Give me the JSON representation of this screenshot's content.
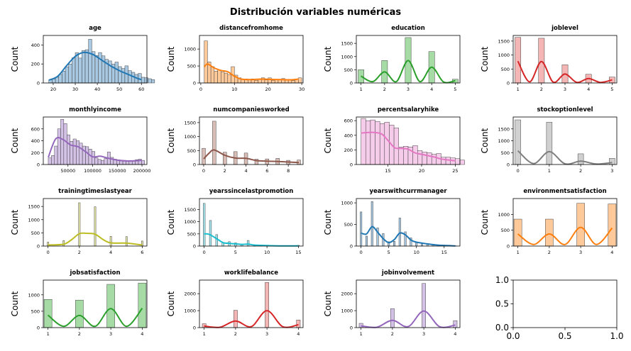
{
  "figure": {
    "title": "Distribución variables numéricas"
  },
  "chart_data": [
    {
      "type": "bar",
      "title": "age",
      "ylabel": "Count",
      "xlim": [
        15.5,
        62.5
      ],
      "ylim": [
        0,
        500
      ],
      "xticks": [
        20,
        30,
        40,
        50,
        60
      ],
      "yticks": [
        0,
        200,
        400
      ],
      "color": "#1f77b4",
      "fill": "#a9c9e2",
      "bins": {
        "start": 18,
        "width": 1.5,
        "counts": [
          33,
          42,
          60,
          90,
          125,
          168,
          200,
          265,
          318,
          262,
          342,
          350,
          460,
          330,
          288,
          320,
          285,
          248,
          232,
          198,
          220,
          172,
          152,
          180,
          130,
          112,
          90,
          100,
          60,
          55,
          45,
          35
        ]
      },
      "kde": [
        [
          18,
          30
        ],
        [
          22,
          70
        ],
        [
          26,
          180
        ],
        [
          30,
          280
        ],
        [
          34,
          322
        ],
        [
          38,
          300
        ],
        [
          42,
          240
        ],
        [
          46,
          180
        ],
        [
          50,
          130
        ],
        [
          54,
          90
        ],
        [
          58,
          50
        ],
        [
          60,
          35
        ]
      ]
    },
    {
      "type": "bar",
      "title": "distancefromhome",
      "ylabel": "Count",
      "xlim": [
        -0.4,
        30.4
      ],
      "ylim": [
        0,
        1400
      ],
      "xticks": [
        0,
        10,
        20,
        30
      ],
      "yticks": [
        0,
        500,
        1000
      ],
      "color": "#ff7f0e",
      "fill": "#ffc99a",
      "bins": {
        "start": 1,
        "width": 1,
        "counts": [
          1240,
          620,
          480,
          350,
          380,
          320,
          290,
          250,
          480,
          230,
          150,
          100,
          120,
          100,
          120,
          80,
          100,
          150,
          90,
          150,
          80,
          100,
          110,
          130,
          80,
          80,
          70,
          120,
          150
        ]
      },
      "kde": [
        [
          1,
          470
        ],
        [
          2,
          560
        ],
        [
          4,
          440
        ],
        [
          6,
          370
        ],
        [
          8,
          330
        ],
        [
          10,
          200
        ],
        [
          12,
          115
        ],
        [
          15,
          100
        ],
        [
          18,
          115
        ],
        [
          21,
          105
        ],
        [
          24,
          100
        ],
        [
          27,
          95
        ],
        [
          29,
          115
        ]
      ]
    },
    {
      "type": "bar",
      "title": "education",
      "ylabel": "Count",
      "xlim": [
        0.8,
        5.2
      ],
      "ylim": [
        0,
        1800
      ],
      "xticks": [
        1,
        2,
        3,
        4,
        5
      ],
      "yticks": [
        0,
        500,
        1000,
        1500
      ],
      "color": "#2ca02c",
      "fill": "#a6dba6",
      "bars": {
        "x": [
          1,
          2,
          3,
          4,
          5
        ],
        "width": 0.25,
        "counts": [
          500,
          850,
          1720,
          1190,
          140
        ]
      },
      "kde": [
        [
          1,
          260
        ],
        [
          1.5,
          50
        ],
        [
          2,
          420
        ],
        [
          2.5,
          50
        ],
        [
          3,
          850
        ],
        [
          3.5,
          50
        ],
        [
          4,
          600
        ],
        [
          4.5,
          40
        ],
        [
          5,
          90
        ]
      ]
    },
    {
      "type": "bar",
      "title": "joblevel",
      "ylabel": "Count",
      "xlim": [
        0.8,
        5.2
      ],
      "ylim": [
        0,
        1700
      ],
      "xticks": [
        1,
        2,
        3,
        4,
        5
      ],
      "yticks": [
        0,
        500,
        1000,
        1500
      ],
      "color": "#d62728",
      "fill": "#f4b5b5",
      "bars": {
        "x": [
          1,
          2,
          3,
          4,
          5
        ],
        "width": 0.25,
        "counts": [
          1630,
          1600,
          650,
          310,
          210
        ]
      },
      "kde": [
        [
          1,
          780
        ],
        [
          1.5,
          40
        ],
        [
          2,
          770
        ],
        [
          2.5,
          30
        ],
        [
          3,
          320
        ],
        [
          3.5,
          20
        ],
        [
          4,
          160
        ],
        [
          4.5,
          20
        ],
        [
          5,
          110
        ]
      ]
    },
    {
      "type": "bar",
      "title": "monthlyincome",
      "ylabel": "Count",
      "xlim": [
        0,
        210000
      ],
      "ylim": [
        0,
        800
      ],
      "xticks": [
        50000,
        100000,
        150000,
        200000
      ],
      "yticks": [
        0,
        200,
        400,
        600
      ],
      "color": "#9467bd",
      "fill": "#d4c2e6",
      "bins": {
        "start": 10000,
        "width": 6300,
        "counts": [
          110,
          150,
          310,
          600,
          760,
          690,
          500,
          390,
          430,
          400,
          360,
          310,
          300,
          260,
          220,
          110,
          85,
          70,
          100,
          210,
          120,
          90,
          80,
          60,
          70,
          60,
          50,
          55,
          80,
          90,
          70
        ]
      },
      "kde": [
        [
          10000,
          120
        ],
        [
          25000,
          430
        ],
        [
          40000,
          420
        ],
        [
          55000,
          330
        ],
        [
          70000,
          300
        ],
        [
          85000,
          220
        ],
        [
          100000,
          130
        ],
        [
          115000,
          140
        ],
        [
          130000,
          110
        ],
        [
          150000,
          75
        ],
        [
          170000,
          60
        ],
        [
          190000,
          65
        ],
        [
          200000,
          70
        ]
      ]
    },
    {
      "type": "bar",
      "title": "numcompaniesworked",
      "ylabel": "Count",
      "xlim": [
        -0.4,
        9.4
      ],
      "ylim": [
        0,
        1700
      ],
      "xticks": [
        0,
        2,
        4,
        6,
        8
      ],
      "yticks": [
        0,
        500,
        1000,
        1500
      ],
      "color": "#8c564b",
      "fill": "#d8bdb7",
      "bars": {
        "x": [
          0,
          1,
          2,
          3,
          4,
          5,
          6,
          7,
          8,
          9
        ],
        "width": 0.33,
        "counts": [
          580,
          1550,
          440,
          460,
          410,
          190,
          200,
          220,
          150,
          160
        ]
      },
      "kde": [
        [
          0,
          200
        ],
        [
          0.5,
          400
        ],
        [
          1,
          520
        ],
        [
          2,
          330
        ],
        [
          3,
          230
        ],
        [
          4,
          220
        ],
        [
          5,
          140
        ],
        [
          6,
          120
        ],
        [
          7,
          110
        ],
        [
          8,
          90
        ],
        [
          9,
          70
        ]
      ]
    },
    {
      "type": "bar",
      "title": "percentsalaryhike",
      "ylabel": "Count",
      "xlim": [
        10.3,
        25.7
      ],
      "ylim": [
        0,
        650
      ],
      "xticks": [
        15,
        20,
        25
      ],
      "yticks": [
        0,
        200,
        400,
        600
      ],
      "color": "#e377c2",
      "fill": "#f6cceb",
      "bins": {
        "start": 11,
        "width": 0.7,
        "counts": [
          630,
          600,
          610,
          590,
          560,
          580,
          540,
          500,
          240,
          250,
          240,
          260,
          190,
          170,
          160,
          140,
          150,
          100,
          100,
          90,
          80,
          60
        ]
      },
      "kde": [
        [
          11,
          430
        ],
        [
          12.5,
          440
        ],
        [
          14,
          420
        ],
        [
          15,
          330
        ],
        [
          16,
          230
        ],
        [
          17,
          220
        ],
        [
          18,
          210
        ],
        [
          19,
          160
        ],
        [
          20,
          140
        ],
        [
          21,
          120
        ],
        [
          22,
          100
        ],
        [
          23,
          75
        ],
        [
          25,
          50
        ]
      ]
    },
    {
      "type": "bar",
      "title": "stockoptionlevel",
      "ylabel": "Count",
      "xlim": [
        -0.15,
        3.15
      ],
      "ylim": [
        0,
        2000
      ],
      "xticks": [
        0,
        1,
        2,
        3
      ],
      "yticks": [
        0,
        500,
        1000,
        1500
      ],
      "color": "#7f7f7f",
      "fill": "#d0d0d0",
      "bars": {
        "x": [
          0,
          1,
          2,
          3
        ],
        "width": 0.18,
        "counts": [
          1880,
          1780,
          450,
          260
        ]
      },
      "kde": [
        [
          0,
          580
        ],
        [
          0.5,
          40
        ],
        [
          1,
          540
        ],
        [
          1.5,
          30
        ],
        [
          2,
          140
        ],
        [
          2.5,
          20
        ],
        [
          3,
          80
        ]
      ]
    },
    {
      "type": "bar",
      "title": "trainingtimeslastyear",
      "ylabel": "Count",
      "xlim": [
        -0.3,
        6.3
      ],
      "ylim": [
        0,
        1800
      ],
      "xticks": [
        0,
        2,
        4,
        6
      ],
      "yticks": [
        0,
        500,
        1000,
        1500
      ],
      "color": "#bcbd22",
      "fill": "#e6e6a8",
      "bars": {
        "x": [
          0,
          1,
          2,
          3,
          4,
          5,
          6
        ],
        "width": 0.1,
        "counts": [
          150,
          210,
          1640,
          1490,
          370,
          360,
          190
        ]
      },
      "kde": [
        [
          0,
          40
        ],
        [
          1,
          70
        ],
        [
          1.5,
          240
        ],
        [
          2,
          470
        ],
        [
          2.5,
          480
        ],
        [
          3,
          450
        ],
        [
          3.5,
          250
        ],
        [
          4,
          120
        ],
        [
          5,
          110
        ],
        [
          6,
          40
        ]
      ]
    },
    {
      "type": "bar",
      "title": "yearssincelastpromotion",
      "ylabel": "Count",
      "xlim": [
        -0.75,
        15.75
      ],
      "ylim": [
        0,
        1950
      ],
      "xticks": [
        0,
        5,
        10,
        15
      ],
      "yticks": [
        0,
        500,
        1000,
        1500
      ],
      "color": "#17becf",
      "fill": "#a8e6ee",
      "bars": {
        "x": [
          0,
          1,
          2,
          3,
          4,
          5,
          6,
          7,
          8,
          9,
          10,
          11,
          12,
          13,
          14,
          15
        ],
        "width": 0.32,
        "counts": [
          1750,
          1050,
          470,
          150,
          180,
          130,
          80,
          230,
          20,
          40,
          20,
          25,
          10,
          20,
          10,
          30
        ]
      },
      "kde": [
        [
          0,
          500
        ],
        [
          0.8,
          480
        ],
        [
          2,
          300
        ],
        [
          3,
          140
        ],
        [
          4,
          110
        ],
        [
          5,
          90
        ],
        [
          6,
          70
        ],
        [
          7,
          80
        ],
        [
          8,
          40
        ],
        [
          10,
          20
        ],
        [
          12,
          10
        ],
        [
          15,
          10
        ]
      ]
    },
    {
      "type": "bar",
      "title": "yearswithcurrmanager",
      "ylabel": "Count",
      "xlim": [
        -0.85,
        17.85
      ],
      "ylim": [
        0,
        1100
      ],
      "xticks": [
        0,
        5,
        10,
        15
      ],
      "yticks": [
        0,
        500,
        1000
      ],
      "color": "#1f77b4",
      "fill": "#a9c9e2",
      "bars": {
        "x": [
          0,
          1,
          2,
          3,
          4,
          5,
          6,
          7,
          8,
          9,
          10,
          11,
          12,
          13,
          14,
          15,
          16,
          17
        ],
        "width": 0.32,
        "counts": [
          790,
          230,
          1030,
          420,
          290,
          100,
          110,
          650,
          330,
          190,
          80,
          70,
          60,
          40,
          25,
          15,
          10,
          7
        ]
      },
      "kde": [
        [
          0,
          300
        ],
        [
          1,
          280
        ],
        [
          2,
          450
        ],
        [
          3,
          320
        ],
        [
          4,
          170
        ],
        [
          5,
          80
        ],
        [
          6,
          150
        ],
        [
          7,
          300
        ],
        [
          8,
          260
        ],
        [
          9,
          140
        ],
        [
          10,
          90
        ],
        [
          12,
          50
        ],
        [
          14,
          20
        ],
        [
          17,
          5
        ]
      ]
    },
    {
      "type": "bar",
      "title": "environmentsatisfaction",
      "ylabel": "Count",
      "xlim": [
        0.85,
        4.15
      ],
      "ylim": [
        0,
        1500
      ],
      "xticks": [
        1,
        2,
        3,
        4
      ],
      "yticks": [
        0,
        500,
        1000
      ],
      "color": "#ff7f0e",
      "fill": "#ffc99a",
      "bars": {
        "x": [
          1,
          2,
          3,
          4
        ],
        "width": 0.25,
        "counts": [
          850,
          850,
          1350,
          1330
        ]
      },
      "kde": [
        [
          1,
          380
        ],
        [
          1.5,
          50
        ],
        [
          2,
          380
        ],
        [
          2.5,
          50
        ],
        [
          3,
          590
        ],
        [
          3.5,
          50
        ],
        [
          4,
          570
        ]
      ]
    },
    {
      "type": "bar",
      "title": "jobsatisfaction",
      "ylabel": "Count",
      "xlim": [
        0.85,
        4.15
      ],
      "ylim": [
        0,
        1450
      ],
      "xticks": [
        1,
        2,
        3,
        4
      ],
      "yticks": [
        0,
        500,
        1000
      ],
      "color": "#2ca02c",
      "fill": "#a6dba6",
      "bars": {
        "x": [
          1,
          2,
          3,
          4
        ],
        "width": 0.25,
        "counts": [
          860,
          840,
          1320,
          1360
        ]
      },
      "kde": [
        [
          1,
          380
        ],
        [
          1.5,
          40
        ],
        [
          2,
          370
        ],
        [
          2.5,
          40
        ],
        [
          3,
          580
        ],
        [
          3.5,
          40
        ],
        [
          4,
          590
        ]
      ]
    },
    {
      "type": "bar",
      "title": "worklifebalance",
      "ylabel": "Count",
      "xlim": [
        0.85,
        4.15
      ],
      "ylim": [
        0,
        2800
      ],
      "xticks": [
        1,
        2,
        3,
        4
      ],
      "yticks": [
        0,
        1000,
        2000
      ],
      "color": "#d62728",
      "fill": "#f4b5b5",
      "bars": {
        "x": [
          1,
          2,
          3,
          4
        ],
        "width": 0.12,
        "counts": [
          230,
          1020,
          2660,
          450
        ]
      },
      "kde": [
        [
          1,
          90
        ],
        [
          1.5,
          20
        ],
        [
          2,
          390
        ],
        [
          2.5,
          60
        ],
        [
          3,
          1000
        ],
        [
          3.5,
          60
        ],
        [
          4,
          170
        ]
      ]
    },
    {
      "type": "bar",
      "title": "jobinvolvement",
      "ylabel": "Count",
      "xlim": [
        0.85,
        4.15
      ],
      "ylim": [
        0,
        2800
      ],
      "xticks": [
        1,
        2,
        3,
        4
      ],
      "yticks": [
        0,
        1000,
        2000
      ],
      "color": "#9467bd",
      "fill": "#d4c2e6",
      "bars": {
        "x": [
          1,
          2,
          3,
          4
        ],
        "width": 0.12,
        "counts": [
          250,
          1120,
          2600,
          410
        ]
      },
      "kde": [
        [
          1,
          100
        ],
        [
          1.5,
          20
        ],
        [
          2,
          430
        ],
        [
          2.5,
          60
        ],
        [
          3,
          980
        ],
        [
          3.5,
          60
        ],
        [
          4,
          150
        ]
      ]
    },
    {
      "type": "empty",
      "xlim": [
        0,
        1
      ],
      "ylim": [
        0,
        1
      ],
      "xtick_labels": [
        "0.0",
        "0.5",
        "1.0"
      ],
      "ytick_labels": [
        "0.0",
        "0.5",
        "1.0"
      ]
    }
  ]
}
